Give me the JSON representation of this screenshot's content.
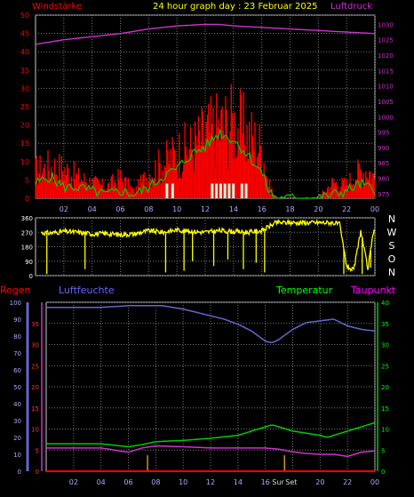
{
  "header": {
    "left_label": "Windstärke",
    "title": "24 hour graph day : 23 Februar 2025",
    "right_label": "Luftdruck"
  },
  "legend_bottom": {
    "regen": "Regen",
    "luftfeuchte": "Luftfeuchte",
    "temperatur": "Temperatur",
    "taupunkt": "Taupunkt"
  },
  "time_ticks": [
    "02",
    "04",
    "06",
    "08",
    "10",
    "12",
    "14",
    "16",
    "18",
    "20",
    "22",
    "00"
  ],
  "sun_labels": {
    "sunrise": "Sur",
    "sunset": "Set"
  },
  "colors": {
    "wind_gust": "#ff0000",
    "wind_avg": "#00cc00",
    "pressure": "#cc33cc",
    "calm_bars": "#d8f0d8",
    "wind_dir": "#ffff00",
    "humidity": "#6666cc",
    "temperature": "#00cc00",
    "dewpoint": "#cc33cc",
    "rain": "#ff0000",
    "sun_marker": "#cc9900"
  },
  "chart_data": [
    {
      "type": "line",
      "name": "wind_and_pressure",
      "y_left_ticks": [
        "0",
        "5",
        "10",
        "15",
        "20",
        "25",
        "30",
        "35",
        "40",
        "45",
        "50"
      ],
      "y_left_range": [
        0,
        50
      ],
      "y_right_ticks": [
        "975",
        "980",
        "985",
        "990",
        "995",
        "1000",
        "1005",
        "1010",
        "1015",
        "1020",
        "1025",
        "1030"
      ],
      "y_right_range": [
        973.5,
        1033
      ],
      "x_range_hours": [
        0,
        24
      ],
      "pressure": {
        "x": [
          0,
          2,
          4,
          6,
          8,
          10,
          12,
          13,
          14,
          16,
          18,
          20,
          22,
          24
        ],
        "y": [
          1023.5,
          1025,
          1026,
          1027,
          1028.5,
          1029.5,
          1030,
          1030,
          1029.5,
          1029,
          1028.5,
          1028,
          1027.5,
          1027
        ]
      },
      "wind_gust_envelope": {
        "x": [
          0,
          1,
          2,
          3,
          4,
          5,
          6,
          7,
          8,
          9,
          10,
          11,
          12,
          13,
          14,
          15,
          16,
          16.5,
          17,
          18,
          19,
          20,
          21,
          22,
          22.5,
          23,
          23.5,
          24
        ],
        "y": [
          12,
          14,
          13,
          9,
          7,
          5,
          9,
          3,
          11,
          15,
          20,
          22,
          28,
          31,
          33,
          28,
          22,
          6,
          0,
          0,
          0,
          0,
          7,
          6,
          10,
          12,
          13,
          9
        ]
      },
      "wind_avg": {
        "x": [
          0,
          1,
          2,
          3,
          4,
          5,
          6,
          7,
          8,
          9,
          10,
          11,
          12,
          13,
          14,
          15,
          16,
          16.5,
          17,
          18,
          19,
          20,
          21,
          22,
          23,
          24
        ],
        "y": [
          4,
          6,
          3,
          3,
          2,
          1,
          2,
          1,
          3,
          6,
          8,
          12,
          14,
          18,
          16,
          12,
          7,
          2,
          0,
          0,
          0,
          0,
          1,
          2,
          4,
          2
        ]
      },
      "calm_bars_hours": [
        9.2,
        9.6,
        12.4,
        12.7,
        13.0,
        13.3,
        13.6,
        13.9,
        14.5,
        14.8
      ]
    },
    {
      "type": "line",
      "name": "wind_direction",
      "y_left_ticks": [
        "0",
        "90",
        "180",
        "270",
        "360"
      ],
      "y_range": [
        0,
        360
      ],
      "compass_labels": [
        "N",
        "W",
        "S",
        "O",
        "N"
      ],
      "x_range_hours": [
        0,
        24
      ],
      "main_trace": {
        "x": [
          0,
          1,
          2,
          3,
          4,
          5,
          6,
          7,
          8,
          9,
          10,
          11,
          12,
          13,
          14,
          15,
          16,
          17,
          18,
          19,
          20,
          21,
          21.5,
          22,
          22.5,
          23,
          23.5,
          24
        ],
        "y": [
          270,
          265,
          275,
          270,
          260,
          262,
          255,
          260,
          280,
          270,
          285,
          275,
          270,
          280,
          275,
          270,
          280,
          330,
          330,
          330,
          330,
          330,
          320,
          60,
          30,
          280,
          40,
          330
        ]
      },
      "drops": {
        "hours": [
          0.8,
          3.5,
          9.2,
          10.5,
          11.1,
          12.6,
          13.6,
          14.7,
          15.6,
          16.2,
          21.8,
          22.4,
          23.1,
          23.7
        ],
        "min": [
          10,
          40,
          20,
          30,
          90,
          60,
          100,
          40,
          80,
          20,
          10,
          30,
          10,
          50
        ]
      }
    },
    {
      "type": "line",
      "name": "humidity_temperature",
      "y_left_humidity_ticks": [
        "0",
        "10",
        "20",
        "30",
        "40",
        "50",
        "60",
        "70",
        "80",
        "90",
        "100"
      ],
      "y_left_temp_ticks": [
        "0",
        "5",
        "10",
        "15",
        "20",
        "25",
        "30",
        "35"
      ],
      "y_right_ticks": [
        "0",
        "5",
        "10",
        "15",
        "20",
        "25",
        "30",
        "35",
        "40"
      ],
      "humidity": {
        "x": [
          0,
          2,
          4,
          6,
          7,
          8,
          8.5,
          10,
          11,
          12,
          13,
          14,
          15,
          16,
          16.5,
          17,
          18,
          19,
          20,
          21,
          22,
          23,
          24
        ],
        "y": [
          97,
          97,
          97,
          98,
          98,
          98,
          98,
          96,
          94,
          92,
          90,
          87,
          83,
          77,
          76,
          78,
          84,
          88,
          89,
          90,
          86,
          84,
          83
        ]
      },
      "temperature": {
        "x": [
          0,
          2,
          4,
          6,
          7,
          8,
          10,
          12,
          14,
          15,
          16,
          16.5,
          17,
          18,
          19,
          20,
          20.5,
          21,
          22,
          23,
          24
        ],
        "y": [
          6.5,
          6.5,
          6.5,
          5.8,
          6.3,
          7.0,
          7.3,
          7.8,
          8.5,
          9.5,
          10.5,
          11.0,
          10.5,
          9.5,
          9.0,
          8.5,
          8.0,
          8.5,
          9.5,
          10.5,
          11.5
        ]
      },
      "dewpoint": {
        "x": [
          0,
          2,
          4,
          5,
          6,
          7,
          8,
          10,
          12,
          14,
          16,
          17,
          18,
          19,
          20,
          21,
          22,
          23,
          24
        ],
        "y": [
          5.5,
          5.5,
          5.5,
          5.0,
          4.5,
          5.5,
          6.0,
          5.8,
          5.5,
          5.5,
          5.5,
          5.2,
          4.6,
          4.2,
          4.0,
          4.0,
          3.5,
          4.5,
          4.8
        ]
      },
      "rain": {
        "x": [
          0,
          24
        ],
        "y": [
          0,
          0
        ]
      },
      "sunrise_hour": 7.4,
      "sunset_hour": 17.4
    }
  ]
}
